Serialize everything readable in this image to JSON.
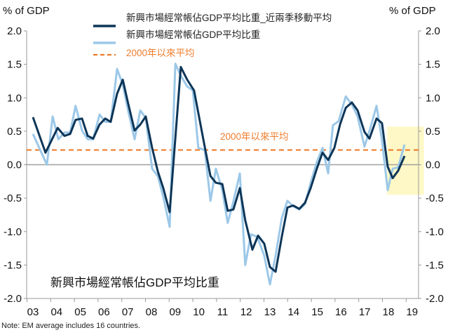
{
  "chart_data": {
    "type": "line",
    "left_axis_title": "% of GDP",
    "right_axis_title": "% of GDP",
    "ylim": [
      -2.0,
      2.0
    ],
    "yticks": [
      "2.0",
      "1.5",
      "1.0",
      "0.5",
      "0.0",
      "-0.5",
      "-1.0",
      "-1.5",
      "-2.0"
    ],
    "ytick_values": [
      2.0,
      1.5,
      1.0,
      0.5,
      0.0,
      -0.5,
      -1.0,
      -1.5,
      -2.0
    ],
    "xlim": [
      2002.7,
      2019.3
    ],
    "xticks": [
      "03",
      "04",
      "05",
      "06",
      "07",
      "08",
      "09",
      "10",
      "11",
      "12",
      "13",
      "14",
      "15",
      "16",
      "17",
      "18",
      "19"
    ],
    "xtick_values": [
      2003,
      2004,
      2005,
      2006,
      2007,
      2008,
      2009,
      2010,
      2011,
      2012,
      2013,
      2014,
      2015,
      2016,
      2017,
      2018,
      2019
    ],
    "legend": [
      {
        "label": "新興市場經常帳佔GDP平均比重_近兩季移動平均",
        "color": "#0d3557",
        "style": "solid"
      },
      {
        "label": "新興市場經常帳佔GDP平均比重",
        "color": "#9cc8e8",
        "style": "solid"
      },
      {
        "label": "2000年以來平均",
        "color": "#ef7d2c",
        "style": "dashed"
      }
    ],
    "legend_placement": "top-center",
    "series": [
      {
        "name": "新興市場經常帳佔GDP平均比重",
        "color": "#9cc8e8",
        "x": [
          2003.0,
          2003.59,
          2003.83,
          2004.07,
          2004.33,
          2004.57,
          2004.8,
          2005.07,
          2005.31,
          2005.54,
          2005.81,
          2006.05,
          2006.28,
          2006.55,
          2006.79,
          2007.02,
          2007.29,
          2007.53,
          2007.76,
          2008.03,
          2008.27,
          2008.5,
          2008.77,
          2009.01,
          2009.24,
          2009.51,
          2009.75,
          2009.98,
          2010.25,
          2010.49,
          2010.72,
          2010.99,
          2011.22,
          2011.46,
          2011.73,
          2011.96,
          2012.2,
          2012.47,
          2012.76,
          2013.0,
          2013.24,
          2013.5,
          2013.74,
          2013.98,
          2014.24,
          2014.48,
          2014.72,
          2014.98,
          2015.22,
          2015.46,
          2015.66,
          2015.9,
          2016.2,
          2016.46,
          2016.7,
          2016.99,
          2017.23,
          2017.5,
          2017.73,
          2017.97,
          2018.18,
          2018.41,
          2018.68
        ],
        "y": [
          0.46,
          0.0,
          0.72,
          0.38,
          0.48,
          0.48,
          0.88,
          0.51,
          0.38,
          0.38,
          0.75,
          0.64,
          0.64,
          1.43,
          1.2,
          0.8,
          0.38,
          0.81,
          0.7,
          -0.06,
          -0.17,
          -0.48,
          -0.93,
          1.51,
          1.33,
          1.17,
          1.11,
          0.25,
          0.22,
          -0.54,
          -0.06,
          -0.38,
          -0.87,
          -0.55,
          -0.13,
          -1.5,
          -1.04,
          -1.08,
          -1.36,
          -1.79,
          -1.36,
          -0.8,
          -0.54,
          -0.62,
          -0.67,
          -0.59,
          -0.27,
          0.04,
          0.25,
          -0.13,
          0.59,
          0.65,
          1.02,
          0.9,
          0.72,
          0.27,
          0.54,
          0.88,
          0.36,
          -0.38,
          -0.06,
          -0.04,
          0.3
        ]
      },
      {
        "name": "新興市場經常帳佔GDP平均比重_近兩季移動平均",
        "color": "#0d3557",
        "x": [
          2003.0,
          2003.53,
          2004.04,
          2004.33,
          2004.57,
          2004.8,
          2005.07,
          2005.31,
          2005.54,
          2005.81,
          2006.05,
          2006.28,
          2006.55,
          2006.79,
          2007.02,
          2007.29,
          2007.53,
          2007.76,
          2008.03,
          2008.27,
          2008.5,
          2008.77,
          2009.24,
          2009.51,
          2009.8,
          2010.25,
          2010.49,
          2010.72,
          2010.99,
          2011.22,
          2011.46,
          2011.73,
          2011.96,
          2012.26,
          2012.5,
          2012.76,
          2013.0,
          2013.24,
          2013.5,
          2013.74,
          2013.98,
          2014.24,
          2014.48,
          2014.72,
          2014.98,
          2015.22,
          2015.46,
          2015.72,
          2015.96,
          2016.2,
          2016.46,
          2016.7,
          2016.99,
          2017.2,
          2017.5,
          2017.73,
          2017.97,
          2018.18,
          2018.41,
          2018.68
        ],
        "y": [
          0.71,
          0.18,
          0.55,
          0.43,
          0.46,
          0.67,
          0.69,
          0.43,
          0.39,
          0.6,
          0.69,
          0.64,
          1.06,
          1.27,
          0.91,
          0.51,
          0.6,
          0.72,
          0.25,
          -0.1,
          -0.35,
          -0.71,
          1.46,
          1.27,
          1.11,
          0.27,
          -0.17,
          -0.27,
          -0.29,
          -0.69,
          -0.67,
          -0.35,
          -0.83,
          -1.27,
          -1.06,
          -1.18,
          -1.53,
          -1.6,
          -1.08,
          -0.64,
          -0.61,
          -0.66,
          -0.57,
          -0.35,
          -0.06,
          0.18,
          0.07,
          0.25,
          0.6,
          0.85,
          0.93,
          0.81,
          0.49,
          0.39,
          0.69,
          0.62,
          -0.03,
          -0.2,
          -0.09,
          0.13
        ]
      }
    ],
    "reference_line": {
      "label": "2000年以來平均",
      "value": 0.22,
      "color": "#ef7d2c"
    },
    "highlight": {
      "x_range": [
        2017.95,
        2019.5
      ],
      "y_range": [
        -0.45,
        0.57
      ],
      "color": "#fdf8c6"
    },
    "annotation": "新興市場經常帳佔GDP平均比重",
    "note": "Note: EM average includes 16 countries."
  }
}
